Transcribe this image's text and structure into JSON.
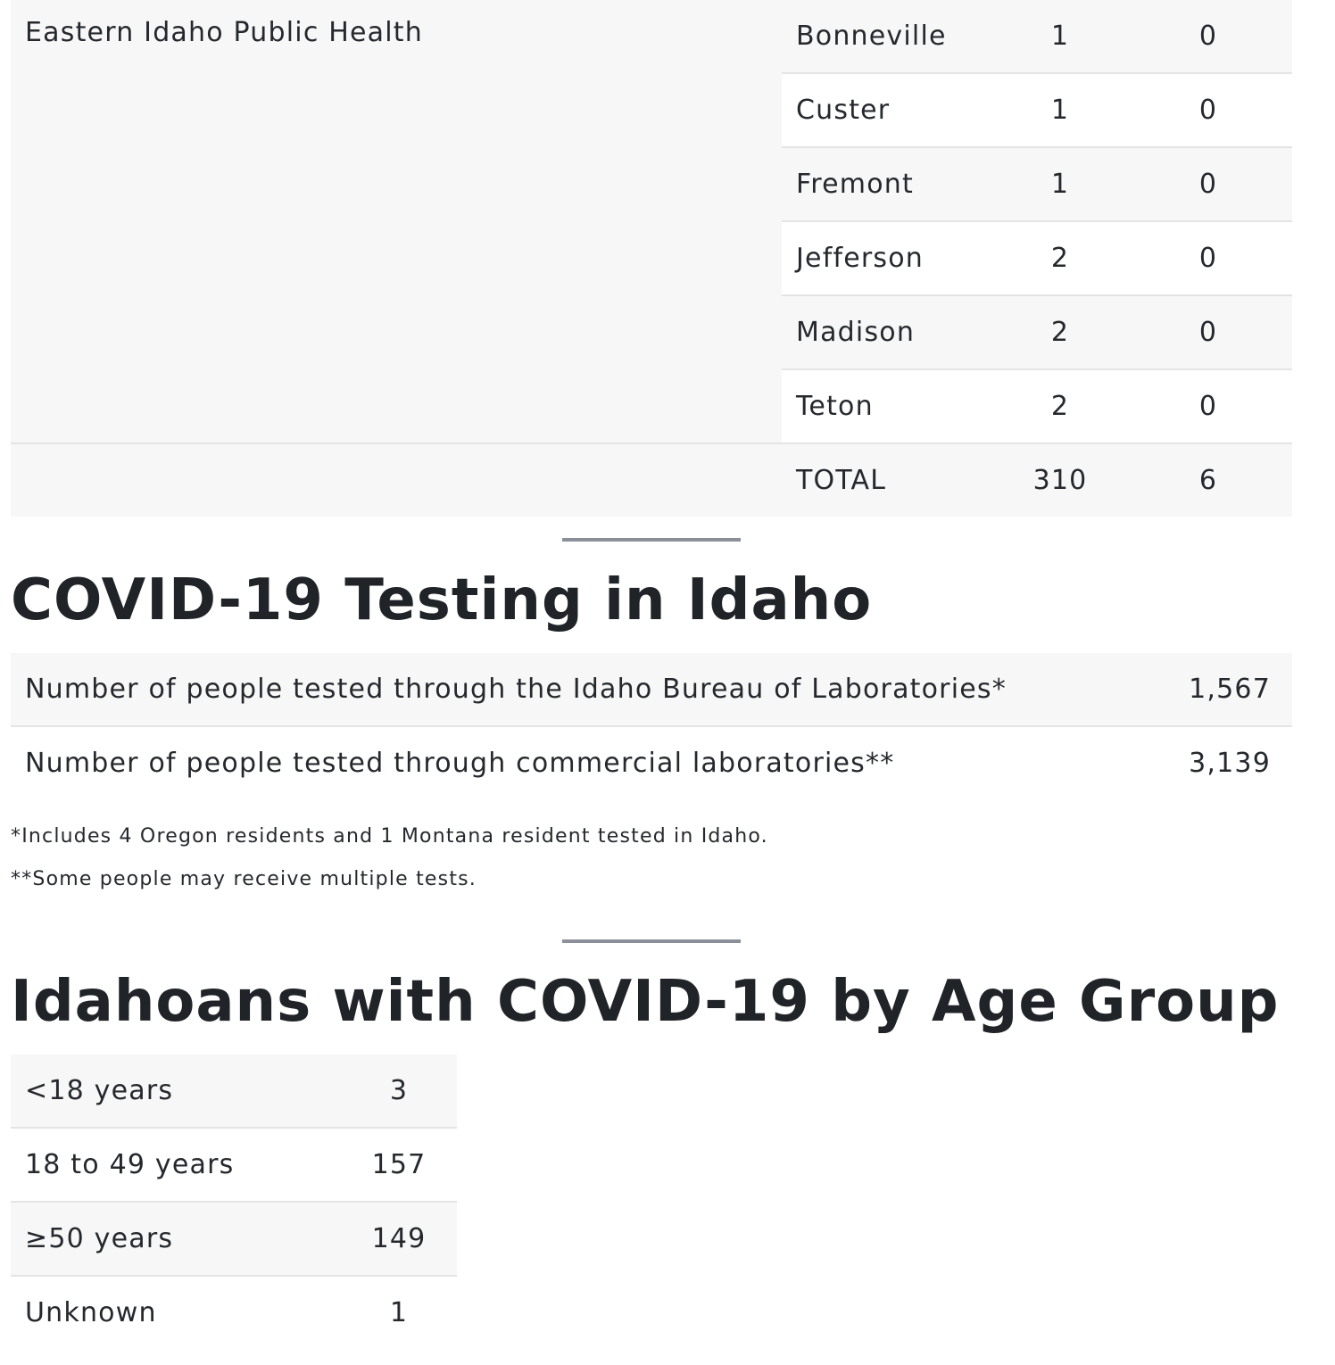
{
  "district_table": {
    "district": "Eastern Idaho Public Health",
    "counties": [
      {
        "name": "Bonneville",
        "cases": "1",
        "deaths": "0"
      },
      {
        "name": "Custer",
        "cases": "1",
        "deaths": "0"
      },
      {
        "name": "Fremont",
        "cases": "1",
        "deaths": "0"
      },
      {
        "name": "Jefferson",
        "cases": "2",
        "deaths": "0"
      },
      {
        "name": "Madison",
        "cases": "2",
        "deaths": "0"
      },
      {
        "name": "Teton",
        "cases": "2",
        "deaths": "0"
      }
    ],
    "total": {
      "label": "TOTAL",
      "cases": "310",
      "deaths": "6"
    }
  },
  "testing": {
    "title": "COVID-19 Testing in Idaho",
    "rows": [
      {
        "label": "Number of people tested through the Idaho Bureau of Laboratories*",
        "value": "1,567"
      },
      {
        "label": "Number of people tested through commercial laboratories**",
        "value": "3,139"
      }
    ],
    "footnotes": [
      "*Includes 4 Oregon residents and 1 Montana resident tested in Idaho.",
      "**Some people may receive multiple tests."
    ]
  },
  "age_group": {
    "title": "Idahoans with COVID-19 by Age Group",
    "rows": [
      {
        "label": "<18 years",
        "value": "3"
      },
      {
        "label": "18 to 49 years",
        "value": "157"
      },
      {
        "label": "≥50 years",
        "value": "149"
      },
      {
        "label": "Unknown",
        "value": "1"
      }
    ]
  },
  "colors": {
    "row_shade": "#f7f7f7",
    "row_border": "#e4e4e4",
    "divider": "#8a8f99",
    "text": "#25282d"
  }
}
